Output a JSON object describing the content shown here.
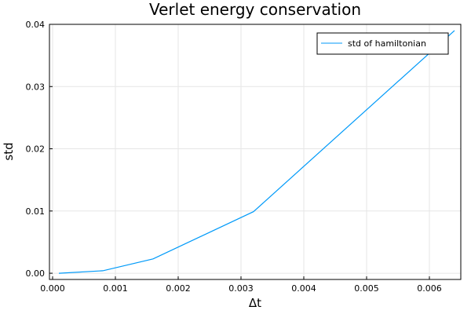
{
  "chart_data": {
    "type": "line",
    "title": "Verlet energy conservation",
    "xlabel": "Δt",
    "ylabel": "std",
    "xlim": [
      -5e-05,
      0.0065
    ],
    "ylim": [
      -0.001,
      0.04
    ],
    "xticks": [
      0.0,
      0.001,
      0.002,
      0.003,
      0.004,
      0.005,
      0.006
    ],
    "xtick_labels": [
      "0.000",
      "0.001",
      "0.002",
      "0.003",
      "0.004",
      "0.005",
      "0.006"
    ],
    "yticks": [
      0.0,
      0.01,
      0.02,
      0.03,
      0.04
    ],
    "ytick_labels": [
      "0.00",
      "0.01",
      "0.02",
      "0.03",
      "0.04"
    ],
    "grid": true,
    "legend_position": "top-right",
    "series": [
      {
        "name": "std of hamiltonian",
        "color": "#009af9",
        "x": [
          0.0001,
          0.0008,
          0.0016,
          0.0032,
          0.0064
        ],
        "y": [
          0.0,
          0.0004,
          0.0023,
          0.0099,
          0.039
        ]
      }
    ]
  }
}
